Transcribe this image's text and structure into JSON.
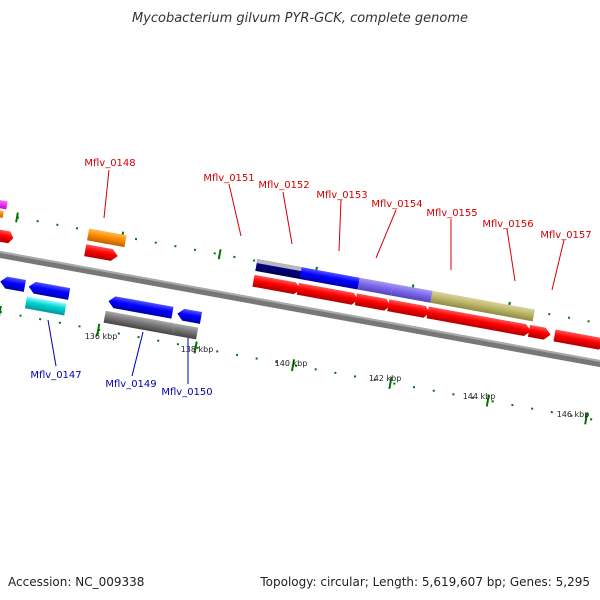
{
  "title": "Mycobacterium gilvum PYR-GCK, complete genome",
  "footer": {
    "accession": "Accession: NC_009338",
    "summary": "Topology: circular; Length: 5,619,607 bp; Genes: 5,295"
  },
  "ticks": [
    "136 kbp",
    "138 kbp",
    "140 kbp",
    "142 kbp",
    "144 kbp",
    "146 kbp"
  ],
  "gene_labels_forward": [
    "Mflv_0148",
    "Mflv_0151",
    "Mflv_0152",
    "Mflv_0153",
    "Mflv_0154",
    "Mflv_0155",
    "Mflv_0156",
    "Mflv_0157"
  ],
  "gene_labels_reverse": [
    "Mflv_0147",
    "Mflv_0149",
    "Mflv_0150"
  ],
  "colors": {
    "forward_cds": "#ff0000",
    "reverse_cds": "#0000ff",
    "forward_label": "#d40000",
    "reverse_label": "#0000b0",
    "backbone": "#777777",
    "tick": "#007700"
  }
}
